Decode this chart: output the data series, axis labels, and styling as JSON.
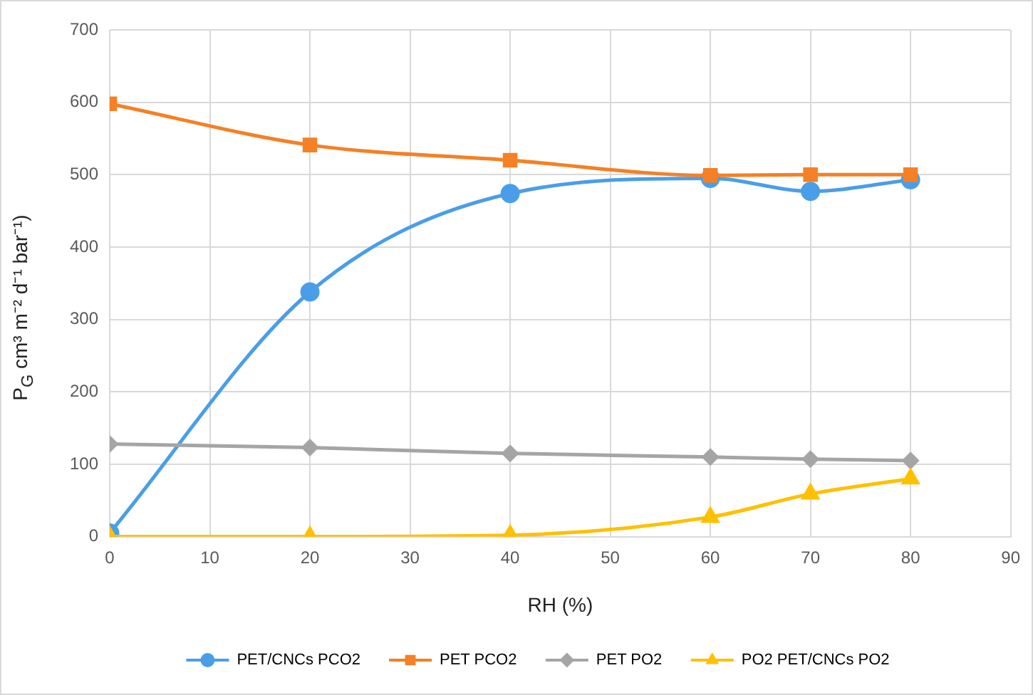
{
  "chart_data": {
    "type": "line",
    "xlabel": "RH (%)",
    "ylabel": "P$_{G}$ cm³ m⁻² d⁻¹ bar⁻¹)",
    "x": [
      0,
      20,
      40,
      60,
      70,
      80
    ],
    "series": [
      {
        "name": "PET/CNCs PCO2",
        "color": "#4a9ee8",
        "marker": "circle",
        "values": [
          5,
          338,
          474,
          495,
          477,
          493
        ]
      },
      {
        "name": "PET PCO2",
        "color": "#f58025",
        "marker": "square",
        "values": [
          598,
          541,
          520,
          499,
          500,
          500
        ]
      },
      {
        "name": "PET PO2",
        "color": "#a5a5a5",
        "marker": "diamond",
        "values": [
          128,
          123,
          115,
          110,
          107,
          105
        ]
      },
      {
        "name": "PO2 PET/CNCs PO2",
        "color": "#ffc000",
        "marker": "triangle",
        "values": [
          0,
          0,
          2,
          27,
          59,
          80
        ]
      }
    ],
    "xlim": [
      0,
      90
    ],
    "xticks": [
      0,
      10,
      20,
      30,
      40,
      50,
      60,
      70,
      80,
      90
    ],
    "ylim": [
      0,
      700
    ],
    "yticks": [
      0,
      100,
      200,
      300,
      400,
      500,
      600,
      700
    ],
    "grid": true,
    "legend": "bottom",
    "line_style": "solid"
  }
}
